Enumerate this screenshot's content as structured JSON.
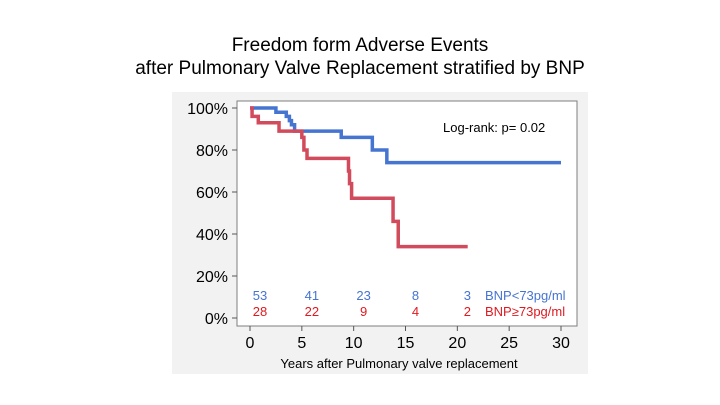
{
  "chart_data": {
    "type": "line",
    "step": true,
    "title_lines": [
      "Freedom form Adverse Events",
      "after Pulmonary Valve Replacement stratified by BNP"
    ],
    "xlabel": "Years after Pulmonary valve replacement",
    "ylabel": "",
    "xlim": [
      0,
      30
    ],
    "ylim": [
      0,
      100
    ],
    "x_ticks": [
      0,
      5,
      10,
      15,
      20,
      25,
      30
    ],
    "y_ticks": [
      0,
      20,
      40,
      60,
      80,
      100
    ],
    "y_tick_labels": [
      "0%",
      "20%",
      "40%",
      "60%",
      "80%",
      "100%"
    ],
    "grid": false,
    "annotation": "Log-rank: p= 0.02",
    "colors": {
      "low": "#4674d1",
      "high": "#d14b5c",
      "high_text": "#e0191f"
    },
    "series": [
      {
        "name": "BNP<73pg/ml",
        "color": "#4674d1",
        "points": [
          [
            0,
            100
          ],
          [
            2.5,
            98
          ],
          [
            3.5,
            96
          ],
          [
            3.8,
            94
          ],
          [
            4.0,
            92
          ],
          [
            4.3,
            89
          ],
          [
            8.8,
            86
          ],
          [
            11.8,
            80
          ],
          [
            13.2,
            74
          ],
          [
            30,
            74
          ]
        ],
        "at_risk": [
          53,
          41,
          23,
          8,
          3
        ]
      },
      {
        "name": "BNP≥73pg/ml",
        "color": "#d14b5c",
        "points": [
          [
            0,
            100
          ],
          [
            0.2,
            96
          ],
          [
            0.8,
            93
          ],
          [
            2.8,
            89
          ],
          [
            5.0,
            86
          ],
          [
            5.2,
            80
          ],
          [
            5.5,
            76
          ],
          [
            9.5,
            70
          ],
          [
            9.6,
            64
          ],
          [
            9.8,
            57
          ],
          [
            13.8,
            46
          ],
          [
            14.3,
            34
          ],
          [
            21,
            34
          ]
        ],
        "at_risk": [
          28,
          22,
          9,
          4,
          2
        ]
      }
    ],
    "at_risk_times": [
      0,
      5,
      10,
      15,
      20
    ],
    "legend_labels": [
      "BNP<73pg/ml",
      "BNP≥73pg/ml"
    ]
  }
}
